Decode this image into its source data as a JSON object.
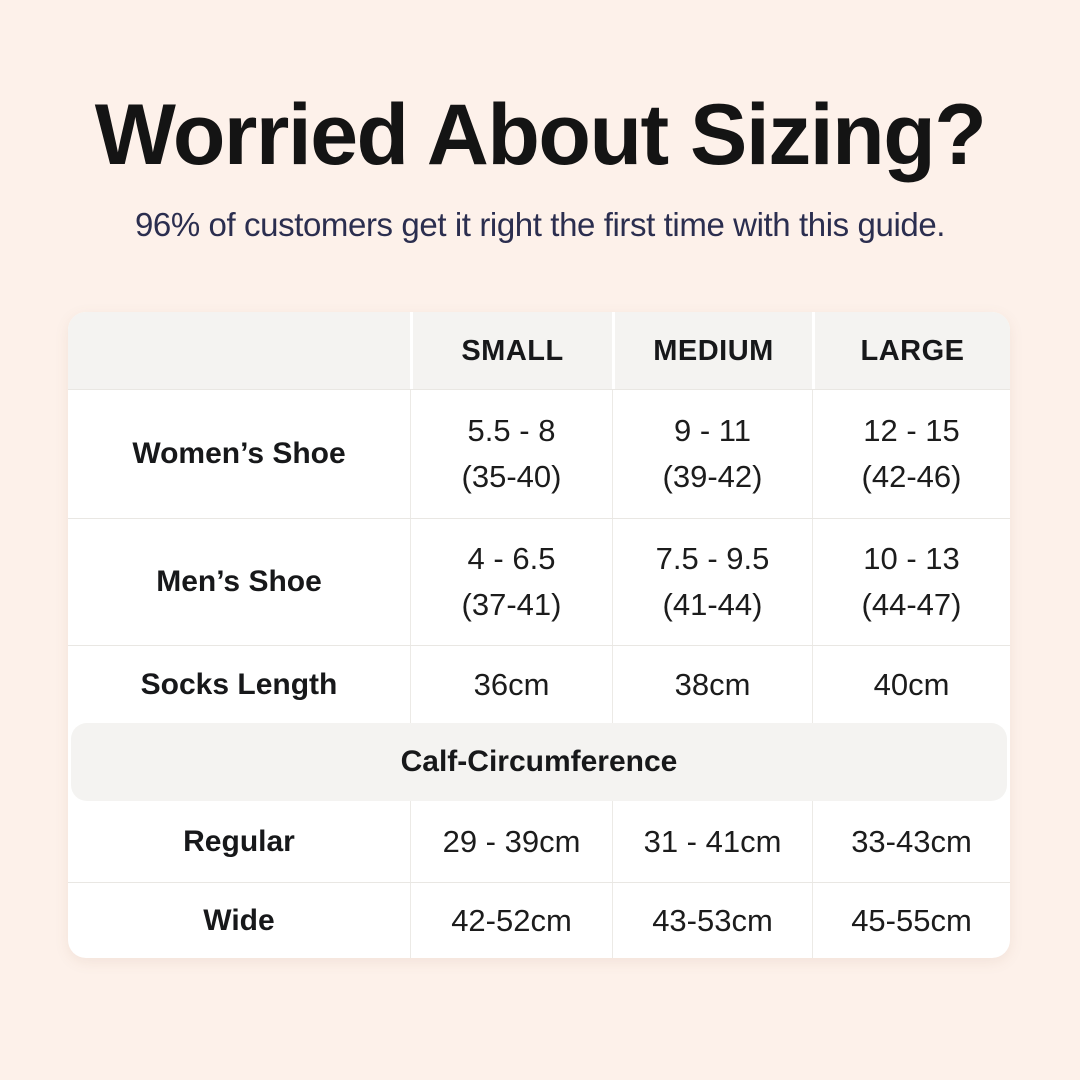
{
  "header": {
    "title": "Worried About Sizing?",
    "subtitle": "96% of customers get it right the first time with this guide."
  },
  "colors": {
    "background": "#fdf1ea",
    "card": "#ffffff",
    "header_band": "#f4f3f1",
    "divider": "#e9e7e3",
    "title_text": "#141414",
    "subtitle_text": "#2b2e4f",
    "body_text": "#1c1c1c"
  },
  "table": {
    "header_row": [
      "",
      "SMALL",
      "MEDIUM",
      "LARGE"
    ],
    "rows": [
      {
        "label": "Women’s Shoe",
        "cells": [
          {
            "line1": "5.5 - 8",
            "line2": "(35-40)"
          },
          {
            "line1": "9 - 11",
            "line2": "(39-42)"
          },
          {
            "line1": "12 - 15",
            "line2": "(42-46)"
          }
        ]
      },
      {
        "label": "Men’s Shoe",
        "cells": [
          {
            "line1": "4 - 6.5",
            "line2": "(37-41)"
          },
          {
            "line1": "7.5 - 9.5",
            "line2": "(41-44)"
          },
          {
            "line1": "10 - 13",
            "line2": "(44-47)"
          }
        ]
      },
      {
        "label": "Socks Length",
        "cells": [
          {
            "line1": "36cm"
          },
          {
            "line1": "38cm"
          },
          {
            "line1": "40cm"
          }
        ]
      }
    ],
    "section_header": "Calf-Circumference",
    "section_rows": [
      {
        "label": "Regular",
        "cells": [
          {
            "line1": "29 - 39cm"
          },
          {
            "line1": "31 - 41cm"
          },
          {
            "line1": "33-43cm"
          }
        ]
      },
      {
        "label": "Wide",
        "cells": [
          {
            "line1": "42-52cm"
          },
          {
            "line1": "43-53cm"
          },
          {
            "line1": "45-55cm"
          }
        ]
      }
    ]
  },
  "chart_data": {
    "type": "table",
    "title": "Worried About Sizing?",
    "subtitle": "96% of customers get it right the first time with this guide.",
    "columns": [
      "",
      "SMALL",
      "MEDIUM",
      "LARGE"
    ],
    "rows": [
      [
        "Women’s Shoe",
        "5.5 - 8 (35-40)",
        "9 - 11 (39-42)",
        "12 - 15 (42-46)"
      ],
      [
        "Men’s Shoe",
        "4 - 6.5 (37-41)",
        "7.5 - 9.5 (41-44)",
        "10 - 13 (44-47)"
      ],
      [
        "Socks Length",
        "36cm",
        "38cm",
        "40cm"
      ],
      [
        "Calf-Circumference",
        "",
        "",
        ""
      ],
      [
        "Regular",
        "29 - 39cm",
        "31 - 41cm",
        "33-43cm"
      ],
      [
        "Wide",
        "42-52cm",
        "43-53cm",
        "45-55cm"
      ]
    ]
  }
}
